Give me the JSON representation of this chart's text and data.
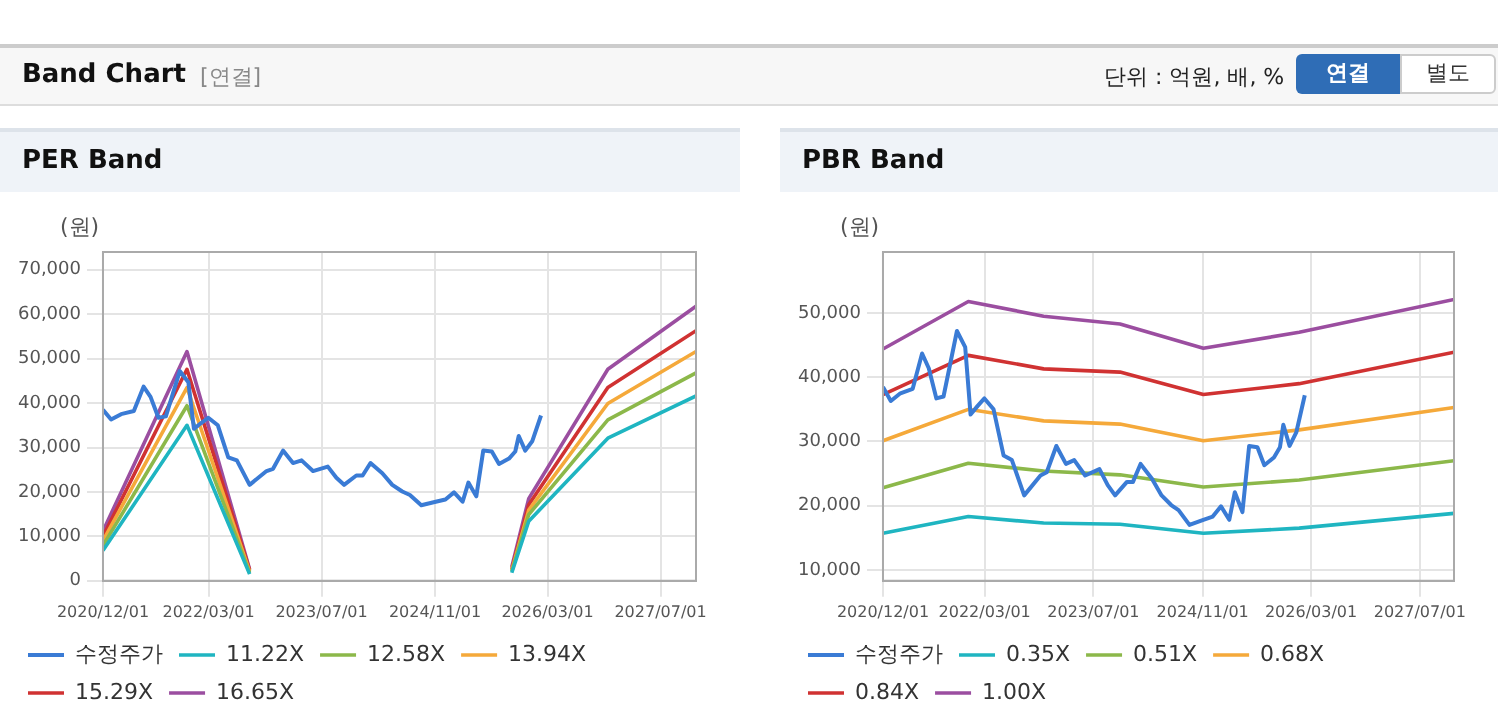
{
  "chart_data": [
    {
      "type": "other",
      "title": "Band Chart",
      "annotations": [
        "[연결]",
        "단위 : 억원, 배, %",
        "연결",
        "별도"
      ]
    },
    {
      "type": "line",
      "title": "PER Band",
      "ylabel": "(원)",
      "xlim": [
        "2020-12-01",
        "2027-12-01"
      ],
      "ylim": [
        0,
        74000
      ],
      "xticks": [
        {
          "value": "2020-12-01",
          "label": "2020/12/01"
        },
        {
          "value": "2022-03-01",
          "label": "2022/03/01"
        },
        {
          "value": "2023-07-01",
          "label": "2023/07/01"
        },
        {
          "value": "2024-11-01",
          "label": "2024/11/01"
        },
        {
          "value": "2026-03-01",
          "label": "2026/03/01"
        },
        {
          "value": "2027-07-01",
          "label": "2027/07/01"
        }
      ],
      "yticks": [
        {
          "value": 0,
          "label": "0"
        },
        {
          "value": 10000,
          "label": "10,000"
        },
        {
          "value": 20000,
          "label": "20,000"
        },
        {
          "value": 30000,
          "label": "30,000"
        },
        {
          "value": 40000,
          "label": "40,000"
        },
        {
          "value": 50000,
          "label": "50,000"
        },
        {
          "value": 60000,
          "label": "60,000"
        },
        {
          "value": 70000,
          "label": "70,000"
        }
      ],
      "grid": true,
      "legend": "bottom",
      "marker": "none",
      "series": [
        {
          "name": "수정주가",
          "color": "#3a7bd5",
          "x": [
            "2020-12-01",
            "2021-01-05",
            "2021-02-17",
            "2021-04-13",
            "2021-05-25",
            "2021-06-24",
            "2021-07-28",
            "2021-08-29",
            "2021-10-28",
            "2021-12-04",
            "2021-12-28",
            "2022-01-28",
            "2022-02-28",
            "2022-04-10",
            "2022-05-25",
            "2022-07-01",
            "2022-08-25",
            "2022-11-06",
            "2022-12-04",
            "2023-01-16",
            "2023-02-28",
            "2023-04-06",
            "2023-05-25",
            "2023-07-28",
            "2023-09-03",
            "2023-10-06",
            "2023-11-28",
            "2023-12-25",
            "2024-01-28",
            "2024-03-19",
            "2024-05-01",
            "2024-06-13",
            "2024-07-16",
            "2024-09-03",
            "2024-11-04",
            "2024-12-16",
            "2025-01-22",
            "2025-02-28",
            "2025-03-25",
            "2025-04-28",
            "2025-05-28",
            "2025-07-04",
            "2025-08-04",
            "2025-09-16",
            "2025-10-13",
            "2025-10-28",
            "2025-11-25",
            "2025-12-25",
            "2026-02-01"
          ],
          "values": [
            38500,
            36300,
            37500,
            38200,
            43700,
            41400,
            36700,
            37000,
            47200,
            44700,
            34200,
            35500,
            36700,
            35000,
            27800,
            27100,
            21600,
            24700,
            25200,
            29300,
            26500,
            27100,
            24700,
            25700,
            23200,
            21600,
            23700,
            23700,
            26500,
            24200,
            21600,
            20100,
            19300,
            17000,
            17800,
            18300,
            19900,
            17800,
            22100,
            19000,
            29300,
            29100,
            26300,
            27500,
            29100,
            32600,
            29300,
            31400,
            37200
          ]
        },
        {
          "name": "11.22X",
          "color": "#1fb5c1",
          "x": [
            "2020-12-01",
            "2021-11-28",
            "2022-08-25",
            "2024-01-01",
            "2025-09-28",
            "2025-12-10",
            "2026-11-16",
            "2027-12-01"
          ],
          "values": [
            6800,
            35000,
            1500,
            null,
            1800,
            13400,
            32100,
            41600
          ]
        },
        {
          "name": "12.58X",
          "color": "#8cb84a",
          "x": [
            "2020-12-01",
            "2021-11-28",
            "2022-08-25",
            "2024-01-01",
            "2025-09-28",
            "2025-12-10",
            "2026-11-16",
            "2027-12-01"
          ],
          "values": [
            7900,
            39400,
            1800,
            null,
            2100,
            14900,
            36200,
            46800
          ]
        },
        {
          "name": "13.94X",
          "color": "#f5a93a",
          "x": [
            "2020-12-01",
            "2021-11-28",
            "2022-08-25",
            "2024-01-01",
            "2025-09-28",
            "2025-12-10",
            "2026-11-16",
            "2027-12-01"
          ],
          "values": [
            9000,
            43500,
            2100,
            null,
            2400,
            15900,
            39900,
            51600
          ]
        },
        {
          "name": "15.29X",
          "color": "#d03232",
          "x": [
            "2020-12-01",
            "2021-11-28",
            "2022-08-25",
            "2024-01-01",
            "2025-09-28",
            "2025-12-10",
            "2026-11-16",
            "2027-12-01"
          ],
          "values": [
            10000,
            47600,
            2400,
            null,
            2600,
            17100,
            43500,
            56300
          ]
        },
        {
          "name": "16.65X",
          "color": "#9b4ea0",
          "x": [
            "2020-12-01",
            "2021-11-28",
            "2022-08-25",
            "2024-01-01",
            "2025-09-28",
            "2025-12-10",
            "2026-11-16",
            "2027-12-01"
          ],
          "values": [
            11200,
            51600,
            2600,
            null,
            3100,
            18500,
            47600,
            61800
          ]
        }
      ]
    },
    {
      "type": "line",
      "title": "PBR Band",
      "ylabel": "(원)",
      "xlim": [
        "2020-12-01",
        "2027-12-01"
      ],
      "ylim": [
        8300,
        59500
      ],
      "xticks": [
        {
          "value": "2020-12-01",
          "label": "2020/12/01"
        },
        {
          "value": "2022-03-01",
          "label": "2022/03/01"
        },
        {
          "value": "2023-07-01",
          "label": "2023/07/01"
        },
        {
          "value": "2024-11-01",
          "label": "2024/11/01"
        },
        {
          "value": "2026-03-01",
          "label": "2026/03/01"
        },
        {
          "value": "2027-07-01",
          "label": "2027/07/01"
        }
      ],
      "yticks": [
        {
          "value": 10000,
          "label": "10,000"
        },
        {
          "value": 20000,
          "label": "20,000"
        },
        {
          "value": 30000,
          "label": "30,000"
        },
        {
          "value": 40000,
          "label": "40,000"
        },
        {
          "value": 50000,
          "label": "50,000"
        }
      ],
      "grid": true,
      "legend": "bottom",
      "marker": "none",
      "series": [
        {
          "name": "수정주가",
          "color": "#3a7bd5",
          "x": [
            "2020-12-01",
            "2021-01-05",
            "2021-02-17",
            "2021-04-13",
            "2021-05-25",
            "2021-06-24",
            "2021-07-28",
            "2021-08-29",
            "2021-10-28",
            "2021-12-04",
            "2021-12-28",
            "2022-01-28",
            "2022-02-28",
            "2022-04-10",
            "2022-05-25",
            "2022-07-01",
            "2022-08-25",
            "2022-11-06",
            "2022-12-04",
            "2023-01-16",
            "2023-02-28",
            "2023-04-06",
            "2023-05-25",
            "2023-07-28",
            "2023-09-03",
            "2023-10-06",
            "2023-11-28",
            "2023-12-25",
            "2024-01-28",
            "2024-03-19",
            "2024-05-01",
            "2024-06-13",
            "2024-07-16",
            "2024-09-03",
            "2024-11-04",
            "2024-12-16",
            "2025-01-22",
            "2025-02-28",
            "2025-03-25",
            "2025-04-28",
            "2025-05-28",
            "2025-07-04",
            "2025-08-04",
            "2025-09-16",
            "2025-10-13",
            "2025-10-28",
            "2025-11-25",
            "2025-12-25",
            "2026-02-01"
          ],
          "values": [
            38500,
            36300,
            37500,
            38200,
            43700,
            41400,
            36700,
            37000,
            47200,
            44700,
            34200,
            35500,
            36700,
            35000,
            27800,
            27100,
            21600,
            24700,
            25200,
            29300,
            26500,
            27100,
            24700,
            25700,
            23200,
            21600,
            23700,
            23700,
            26500,
            24200,
            21600,
            20100,
            19300,
            17000,
            17800,
            18300,
            19900,
            17800,
            22100,
            19000,
            29300,
            29100,
            26300,
            27500,
            29100,
            32600,
            29300,
            31400,
            37200
          ]
        },
        {
          "name": "0.35X",
          "color": "#1fb5c1",
          "x": [
            "2020-12-01",
            "2021-12-18",
            "2022-11-20",
            "2023-10-28",
            "2024-11-04",
            "2026-01-07",
            "2027-12-01"
          ],
          "values": [
            15700,
            18300,
            17300,
            17100,
            15700,
            16500,
            18800
          ]
        },
        {
          "name": "0.51X",
          "color": "#8cb84a",
          "x": [
            "2020-12-01",
            "2021-12-18",
            "2022-11-20",
            "2023-10-28",
            "2024-11-04",
            "2026-01-07",
            "2027-12-01"
          ],
          "values": [
            22800,
            26600,
            25400,
            24800,
            22900,
            24000,
            27000
          ]
        },
        {
          "name": "0.68X",
          "color": "#f5a93a",
          "x": [
            "2020-12-01",
            "2021-12-18",
            "2022-11-20",
            "2023-10-28",
            "2024-11-04",
            "2026-01-07",
            "2027-12-01"
          ],
          "values": [
            30100,
            35000,
            33200,
            32700,
            30100,
            31800,
            35300
          ]
        },
        {
          "name": "0.84X",
          "color": "#d03232",
          "x": [
            "2020-12-01",
            "2021-12-18",
            "2022-11-20",
            "2023-10-28",
            "2024-11-04",
            "2026-01-07",
            "2027-12-01"
          ],
          "values": [
            37300,
            43400,
            41300,
            40800,
            37300,
            39000,
            43900
          ]
        },
        {
          "name": "1.00X",
          "color": "#9b4ea0",
          "x": [
            "2020-12-01",
            "2021-12-18",
            "2022-11-20",
            "2023-10-28",
            "2024-11-04",
            "2026-01-07",
            "2027-12-01"
          ],
          "values": [
            44400,
            51800,
            49500,
            48300,
            44500,
            47000,
            52100
          ]
        }
      ]
    }
  ]
}
